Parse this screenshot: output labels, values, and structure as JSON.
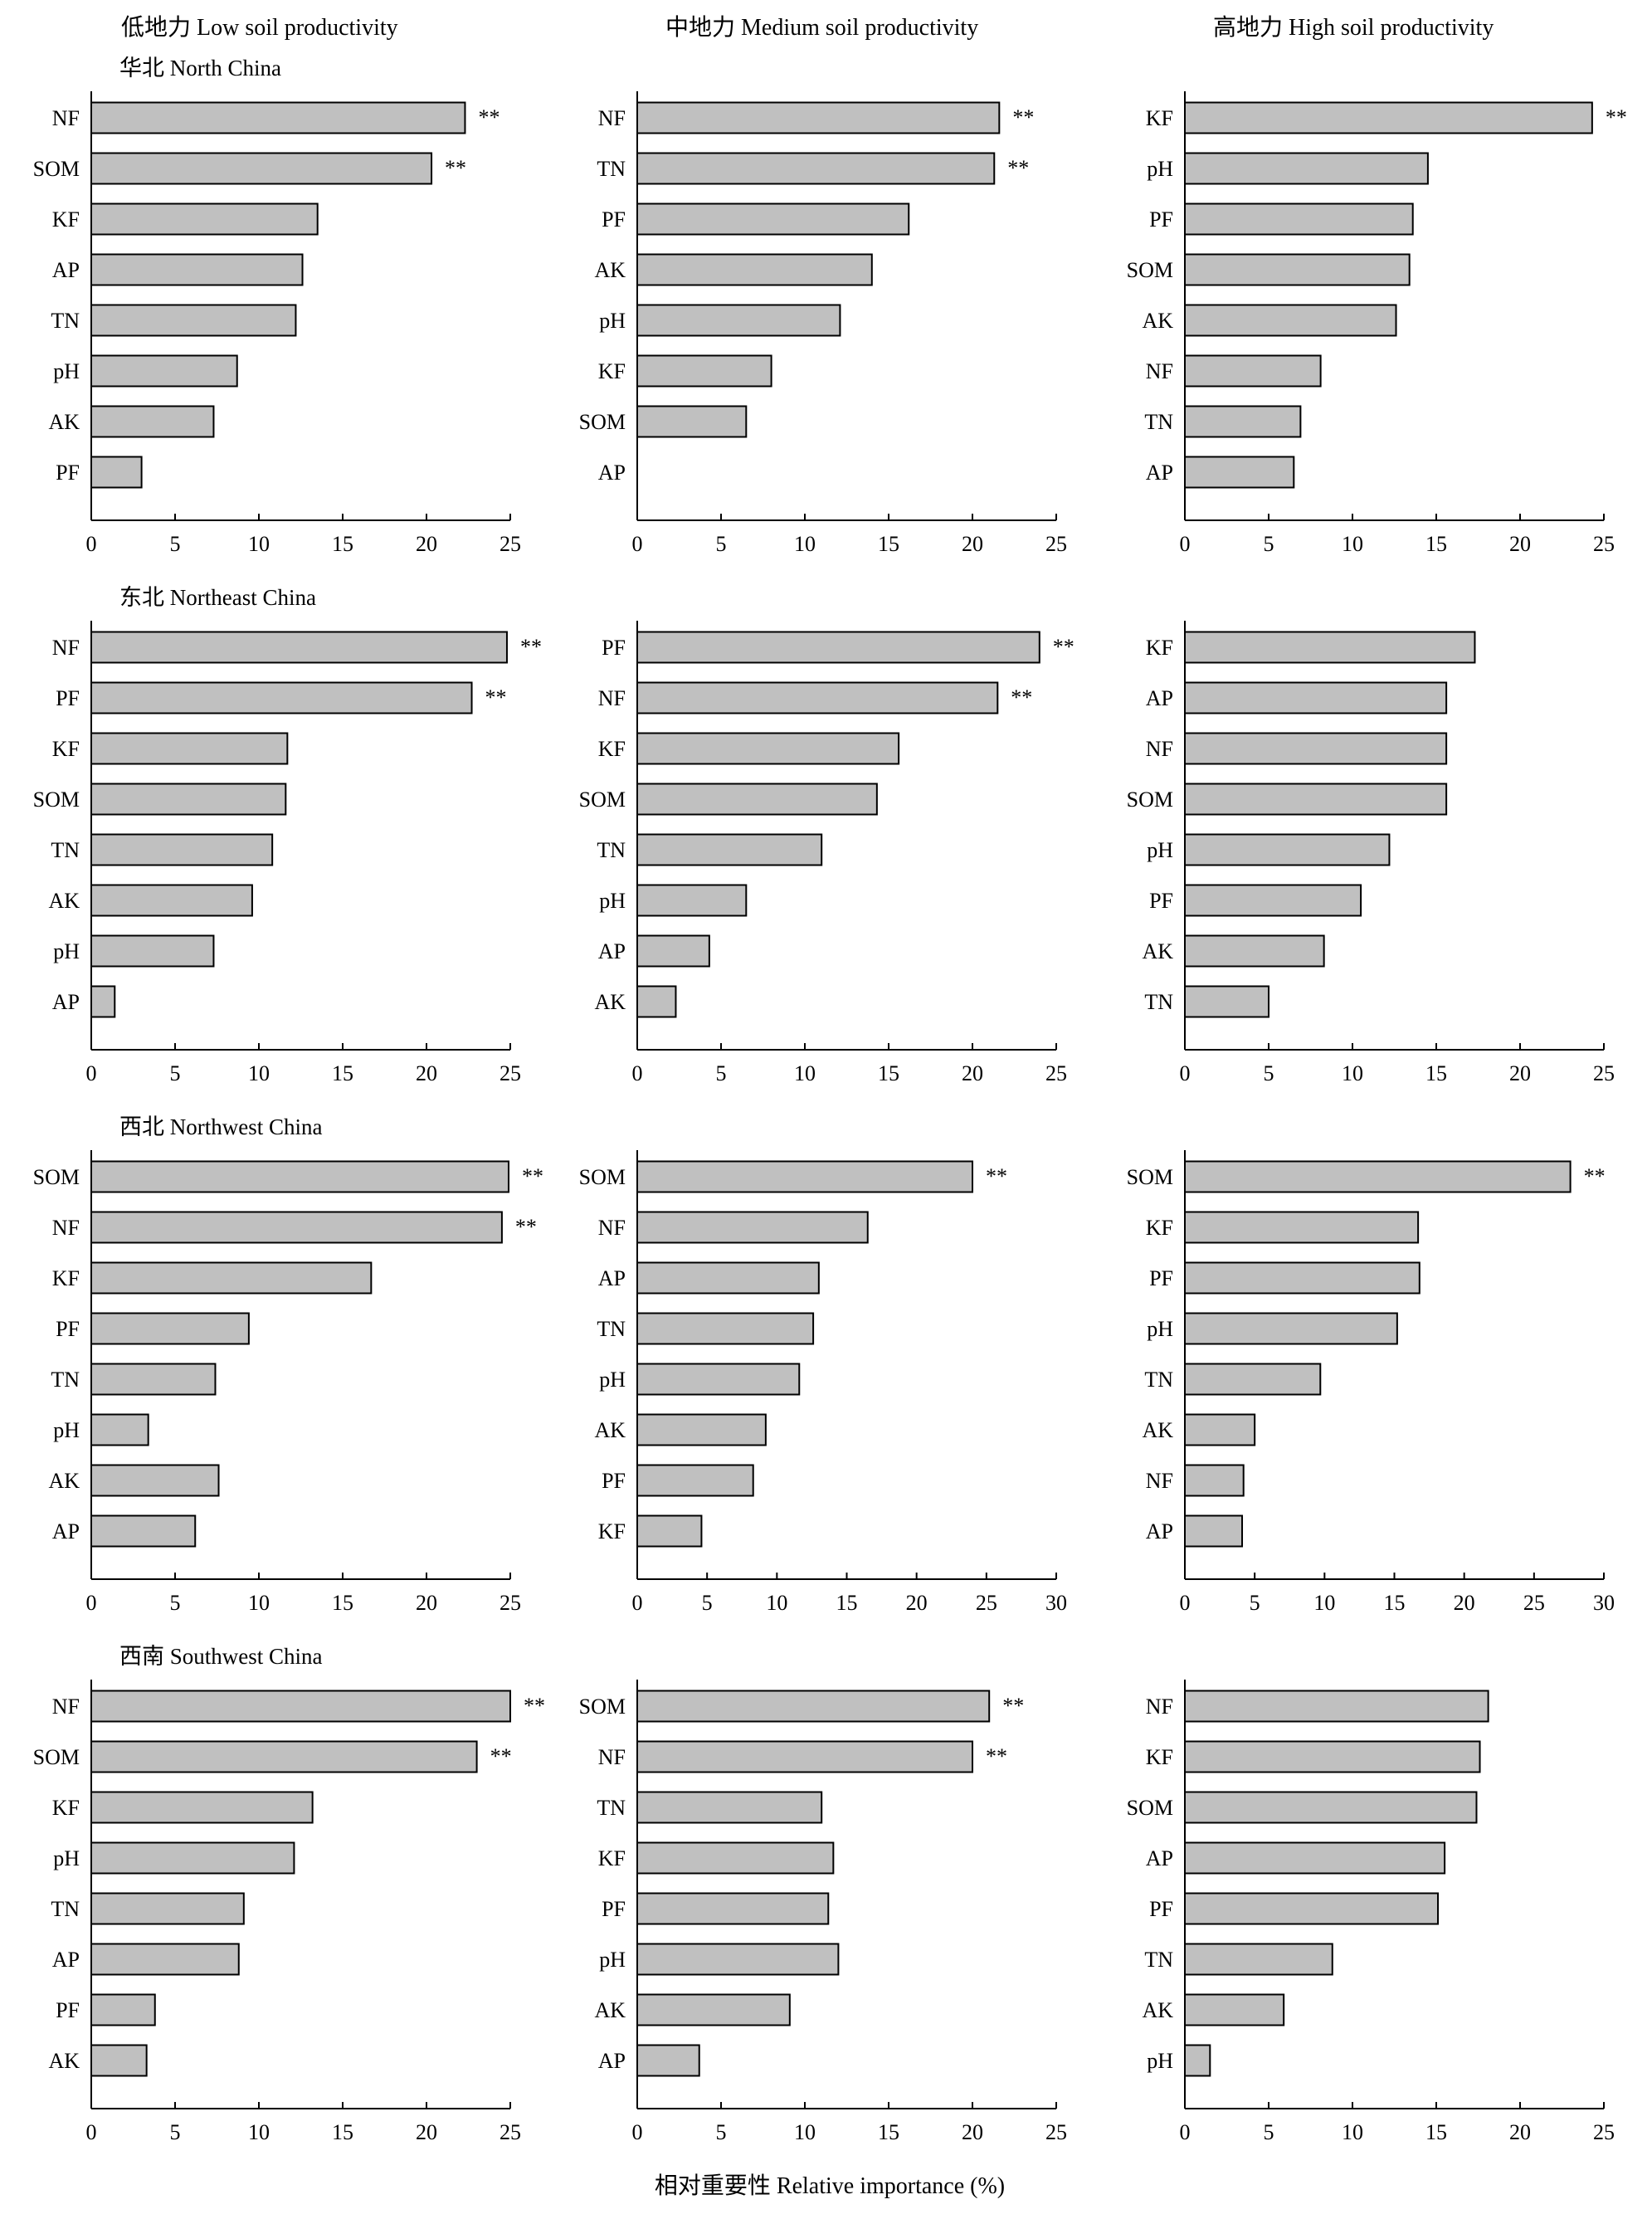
{
  "column_titles": [
    "低地力 Low soil productivity",
    "中地力 Medium soil productivity",
    "高地力 High soil productivity"
  ],
  "row_titles": [
    "华北 North China",
    "东北 Northeast China",
    "西北 Northwest China",
    "西南 Southwest China"
  ],
  "xlabel": "相对重要性 Relative importance (%)",
  "significance_marker": "**",
  "colors": {
    "bar_fill": "#c0c0c0",
    "bar_stroke": "#000000",
    "axis": "#000000"
  },
  "chart_data": [
    {
      "type": "bar",
      "orientation": "horizontal",
      "region": "华北 North China",
      "productivity": "低地力 Low soil productivity",
      "categories": [
        "NF",
        "SOM",
        "KF",
        "AP",
        "TN",
        "pH",
        "AK",
        "PF"
      ],
      "values": [
        22.3,
        20.3,
        13.5,
        12.6,
        12.2,
        8.7,
        7.3,
        3.0
      ],
      "significant": [
        true,
        true,
        false,
        false,
        false,
        false,
        false,
        false
      ],
      "xlim": [
        0,
        25
      ],
      "xticks": [
        0,
        5,
        10,
        15,
        20,
        25
      ]
    },
    {
      "type": "bar",
      "orientation": "horizontal",
      "region": "华北 North China",
      "productivity": "中地力 Medium soil productivity",
      "categories": [
        "NF",
        "TN",
        "PF",
        "AK",
        "pH",
        "KF",
        "SOM",
        "AP"
      ],
      "values": [
        21.6,
        21.3,
        16.2,
        14.0,
        12.1,
        8.0,
        6.5,
        0
      ],
      "significant": [
        true,
        true,
        false,
        false,
        false,
        false,
        false,
        false
      ],
      "xlim": [
        0,
        25
      ],
      "xticks": [
        0,
        5,
        10,
        15,
        20,
        25
      ]
    },
    {
      "type": "bar",
      "orientation": "horizontal",
      "region": "华北 North China",
      "productivity": "高地力 High soil productivity",
      "categories": [
        "KF",
        "pH",
        "PF",
        "SOM",
        "AK",
        "NF",
        "TN",
        "AP"
      ],
      "values": [
        24.3,
        14.5,
        13.6,
        13.4,
        12.6,
        8.1,
        6.9,
        6.5
      ],
      "significant": [
        true,
        false,
        false,
        false,
        false,
        false,
        false,
        false
      ],
      "xlim": [
        0,
        25
      ],
      "xticks": [
        0,
        5,
        10,
        15,
        20,
        25
      ]
    },
    {
      "type": "bar",
      "orientation": "horizontal",
      "region": "东北 Northeast China",
      "productivity": "低地力 Low soil productivity",
      "categories": [
        "NF",
        "PF",
        "KF",
        "SOM",
        "TN",
        "AK",
        "pH",
        "AP"
      ],
      "values": [
        24.8,
        22.7,
        11.7,
        11.6,
        10.8,
        9.6,
        7.3,
        1.4
      ],
      "significant": [
        true,
        true,
        false,
        false,
        false,
        false,
        false,
        false
      ],
      "xlim": [
        0,
        25
      ],
      "xticks": [
        0,
        5,
        10,
        15,
        20,
        25
      ]
    },
    {
      "type": "bar",
      "orientation": "horizontal",
      "region": "东北 Northeast China",
      "productivity": "中地力 Medium soil productivity",
      "categories": [
        "PF",
        "NF",
        "KF",
        "SOM",
        "TN",
        "pH",
        "AP",
        "AK"
      ],
      "values": [
        24.0,
        21.5,
        15.6,
        14.3,
        11.0,
        6.5,
        4.3,
        2.3
      ],
      "significant": [
        true,
        true,
        false,
        false,
        false,
        false,
        false,
        false
      ],
      "xlim": [
        0,
        25
      ],
      "xticks": [
        0,
        5,
        10,
        15,
        20,
        25
      ]
    },
    {
      "type": "bar",
      "orientation": "horizontal",
      "region": "东北 Northeast China",
      "productivity": "高地力 High soil productivity",
      "categories": [
        "KF",
        "AP",
        "NF",
        "SOM",
        "pH",
        "PF",
        "AK",
        "TN"
      ],
      "values": [
        17.3,
        15.6,
        15.6,
        15.6,
        12.2,
        10.5,
        8.3,
        5.0
      ],
      "significant": [
        false,
        false,
        false,
        false,
        false,
        false,
        false,
        false
      ],
      "xlim": [
        0,
        25
      ],
      "xticks": [
        0,
        5,
        10,
        15,
        20,
        25
      ]
    },
    {
      "type": "bar",
      "orientation": "horizontal",
      "region": "西北 Northwest China",
      "productivity": "低地力 Low soil productivity",
      "categories": [
        "SOM",
        "NF",
        "KF",
        "PF",
        "TN",
        "pH",
        "AK",
        "AP"
      ],
      "values": [
        24.9,
        24.5,
        16.7,
        9.4,
        7.4,
        3.4,
        7.6,
        6.2
      ],
      "significant": [
        true,
        true,
        false,
        false,
        false,
        false,
        false,
        false
      ],
      "xlim": [
        0,
        25
      ],
      "xticks": [
        0,
        5,
        10,
        15,
        20,
        25
      ]
    },
    {
      "type": "bar",
      "orientation": "horizontal",
      "region": "西北 Northwest China",
      "productivity": "中地力 Medium soil productivity",
      "categories": [
        "SOM",
        "NF",
        "AP",
        "TN",
        "pH",
        "AK",
        "PF",
        "KF"
      ],
      "values": [
        24.0,
        16.5,
        13.0,
        12.6,
        11.6,
        9.2,
        8.3,
        4.6
      ],
      "significant": [
        true,
        false,
        false,
        false,
        false,
        false,
        false,
        false
      ],
      "xlim": [
        0,
        30
      ],
      "xticks": [
        0,
        5,
        10,
        15,
        20,
        25,
        30
      ]
    },
    {
      "type": "bar",
      "orientation": "horizontal",
      "region": "西北 Northwest China",
      "productivity": "高地力 High soil productivity",
      "categories": [
        "SOM",
        "KF",
        "PF",
        "pH",
        "TN",
        "AK",
        "NF",
        "AP"
      ],
      "values": [
        27.6,
        16.7,
        16.8,
        15.2,
        9.7,
        5.0,
        4.2,
        4.1
      ],
      "significant": [
        true,
        false,
        false,
        false,
        false,
        false,
        false,
        false
      ],
      "xlim": [
        0,
        30
      ],
      "xticks": [
        0,
        5,
        10,
        15,
        20,
        25,
        30
      ]
    },
    {
      "type": "bar",
      "orientation": "horizontal",
      "region": "西南 Southwest China",
      "productivity": "低地力 Low soil productivity",
      "categories": [
        "NF",
        "SOM",
        "KF",
        "pH",
        "TN",
        "AP",
        "PF",
        "AK"
      ],
      "values": [
        25.0,
        23.0,
        13.2,
        12.1,
        9.1,
        8.8,
        3.8,
        3.3
      ],
      "significant": [
        true,
        true,
        false,
        false,
        false,
        false,
        false,
        false
      ],
      "xlim": [
        0,
        25
      ],
      "xticks": [
        0,
        5,
        10,
        15,
        20,
        25
      ]
    },
    {
      "type": "bar",
      "orientation": "horizontal",
      "region": "西南 Southwest China",
      "productivity": "中地力 Medium soil productivity",
      "categories": [
        "SOM",
        "NF",
        "TN",
        "KF",
        "PF",
        "pH",
        "AK",
        "AP"
      ],
      "values": [
        21.0,
        20.0,
        11.0,
        11.7,
        11.4,
        12.0,
        9.1,
        3.7
      ],
      "significant": [
        true,
        true,
        false,
        false,
        false,
        false,
        false,
        false
      ],
      "xlim": [
        0,
        25
      ],
      "xticks": [
        0,
        5,
        10,
        15,
        20,
        25
      ]
    },
    {
      "type": "bar",
      "orientation": "horizontal",
      "region": "西南 Southwest China",
      "productivity": "高地力 High soil productivity",
      "categories": [
        "NF",
        "KF",
        "SOM",
        "AP",
        "PF",
        "TN",
        "AK",
        "pH"
      ],
      "values": [
        18.1,
        17.6,
        17.4,
        15.5,
        15.1,
        8.8,
        5.9,
        1.5
      ],
      "significant": [
        false,
        false,
        false,
        false,
        false,
        false,
        false,
        false
      ],
      "xlim": [
        0,
        25
      ],
      "xticks": [
        0,
        5,
        10,
        15,
        20,
        25
      ]
    }
  ]
}
